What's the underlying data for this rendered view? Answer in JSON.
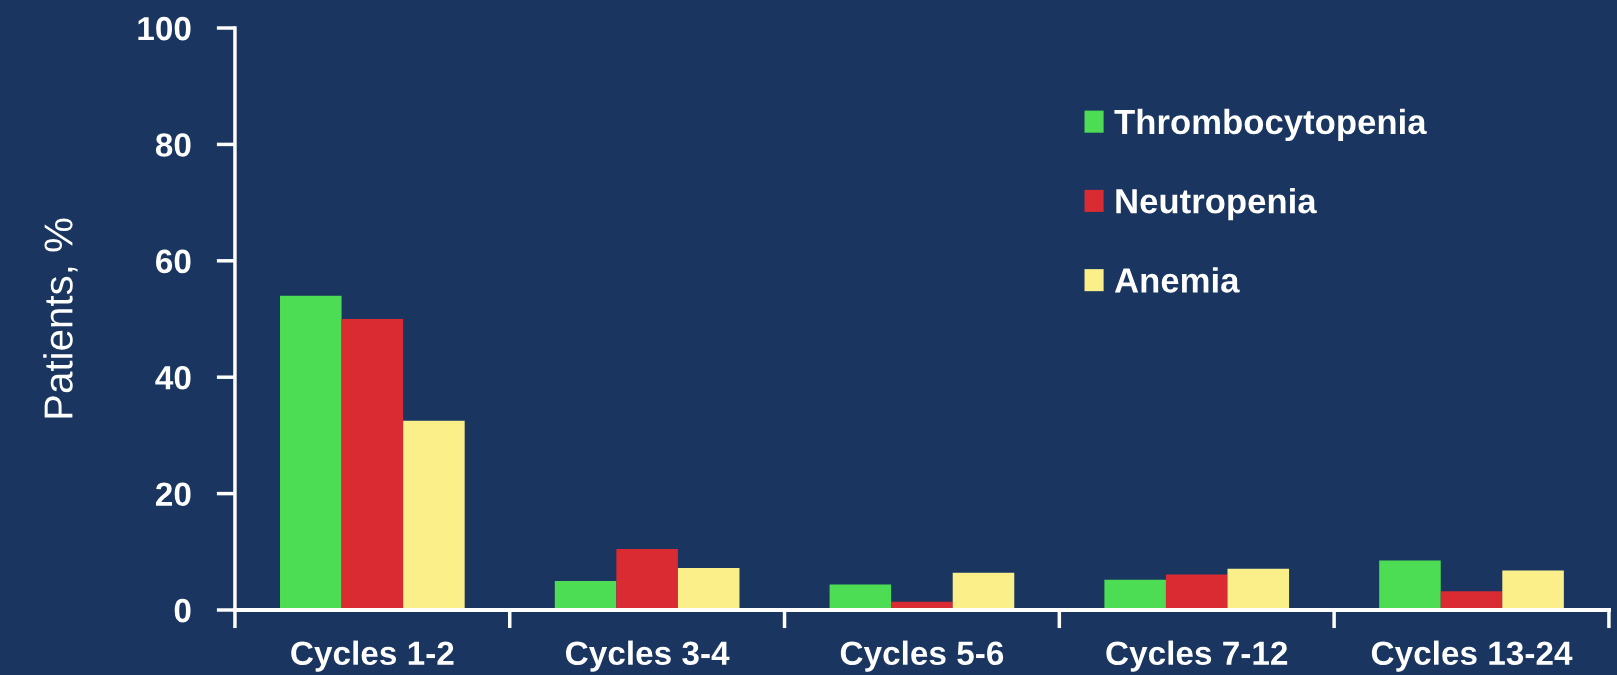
{
  "chart_data": {
    "type": "bar",
    "ylabel": "Patients, %",
    "categories": [
      "Cycles 1-2",
      "Cycles 3-4",
      "Cycles 5-6",
      "Cycles 7-12",
      "Cycles 13-24"
    ],
    "series": [
      {
        "name": "Thrombocytopenia",
        "color": "#4cdd55",
        "values": [
          54,
          5,
          4.4,
          5.2,
          8.5
        ]
      },
      {
        "name": "Neutropenia",
        "color": "#d92b31",
        "values": [
          50,
          10.5,
          1.4,
          6.1,
          3.2
        ]
      },
      {
        "name": "Anemia",
        "color": "#fbef8a",
        "values": [
          32.5,
          7.2,
          6.4,
          7.1,
          6.8
        ]
      }
    ],
    "ylim": [
      0,
      100
    ],
    "yticks": [
      0,
      20,
      40,
      60,
      80,
      100
    ],
    "legend": "top right"
  }
}
